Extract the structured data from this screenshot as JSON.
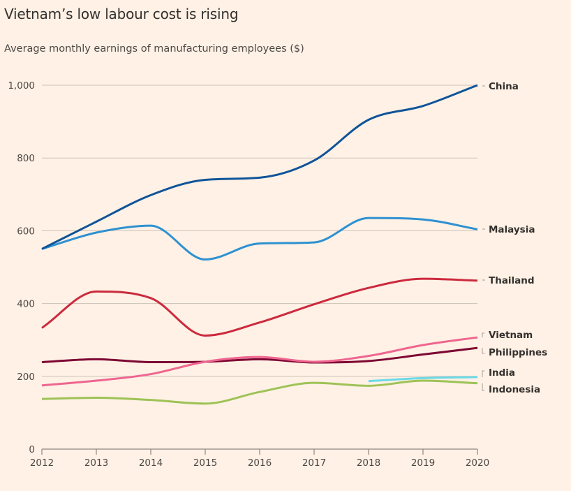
{
  "header": {
    "title": "Vietnam’s low labour cost is rising",
    "subtitle": "Average monthly earnings of manufacturing employees ($)"
  },
  "chart_data": {
    "type": "line",
    "title": "Vietnam’s low labour cost is rising",
    "subtitle": "Average monthly earnings of manufacturing employees ($)",
    "xlabel": "",
    "ylabel": "",
    "x": [
      2012,
      2013,
      2014,
      2015,
      2016,
      2017,
      2018,
      2019,
      2020
    ],
    "xlim": [
      2012,
      2020
    ],
    "ylim": [
      0,
      1000
    ],
    "y_ticks": [
      0,
      200,
      400,
      600,
      800,
      1000
    ],
    "y_tick_labels": [
      "0",
      "200",
      "400",
      "600",
      "800",
      "1,000"
    ],
    "x_tick_labels": [
      "2012",
      "2013",
      "2014",
      "2015",
      "2016",
      "2017",
      "2018",
      "2019",
      "2020"
    ],
    "grid": true,
    "legend": "direct labels at right end of lines",
    "series": [
      {
        "name": "China",
        "color": "#0f5499",
        "values": [
          550,
          625,
          698,
          740,
          746,
          793,
          905,
          943,
          1000
        ]
      },
      {
        "name": "Malaysia",
        "color": "#2e91d1",
        "values": [
          550,
          595,
          614,
          521,
          565,
          568,
          635,
          631,
          604
        ]
      },
      {
        "name": "Thailand",
        "color": "#cc2a3e",
        "values": [
          333,
          433,
          415,
          312,
          348,
          398,
          443,
          468,
          463
        ]
      },
      {
        "name": "Vietnam",
        "color": "#ee6690",
        "values": [
          175,
          188,
          206,
          240,
          253,
          240,
          256,
          286,
          307
        ]
      },
      {
        "name": "Philippines",
        "color": "#7d0633",
        "values": [
          239,
          247,
          239,
          240,
          247,
          238,
          242,
          260,
          278
        ]
      },
      {
        "name": "India",
        "color": "#6cd9e6",
        "values": [
          null,
          null,
          null,
          null,
          null,
          null,
          187,
          195,
          198
        ]
      },
      {
        "name": "Indonesia",
        "color": "#9ec256",
        "values": [
          138,
          141,
          135,
          125,
          157,
          182,
          174,
          188,
          181
        ]
      }
    ]
  }
}
